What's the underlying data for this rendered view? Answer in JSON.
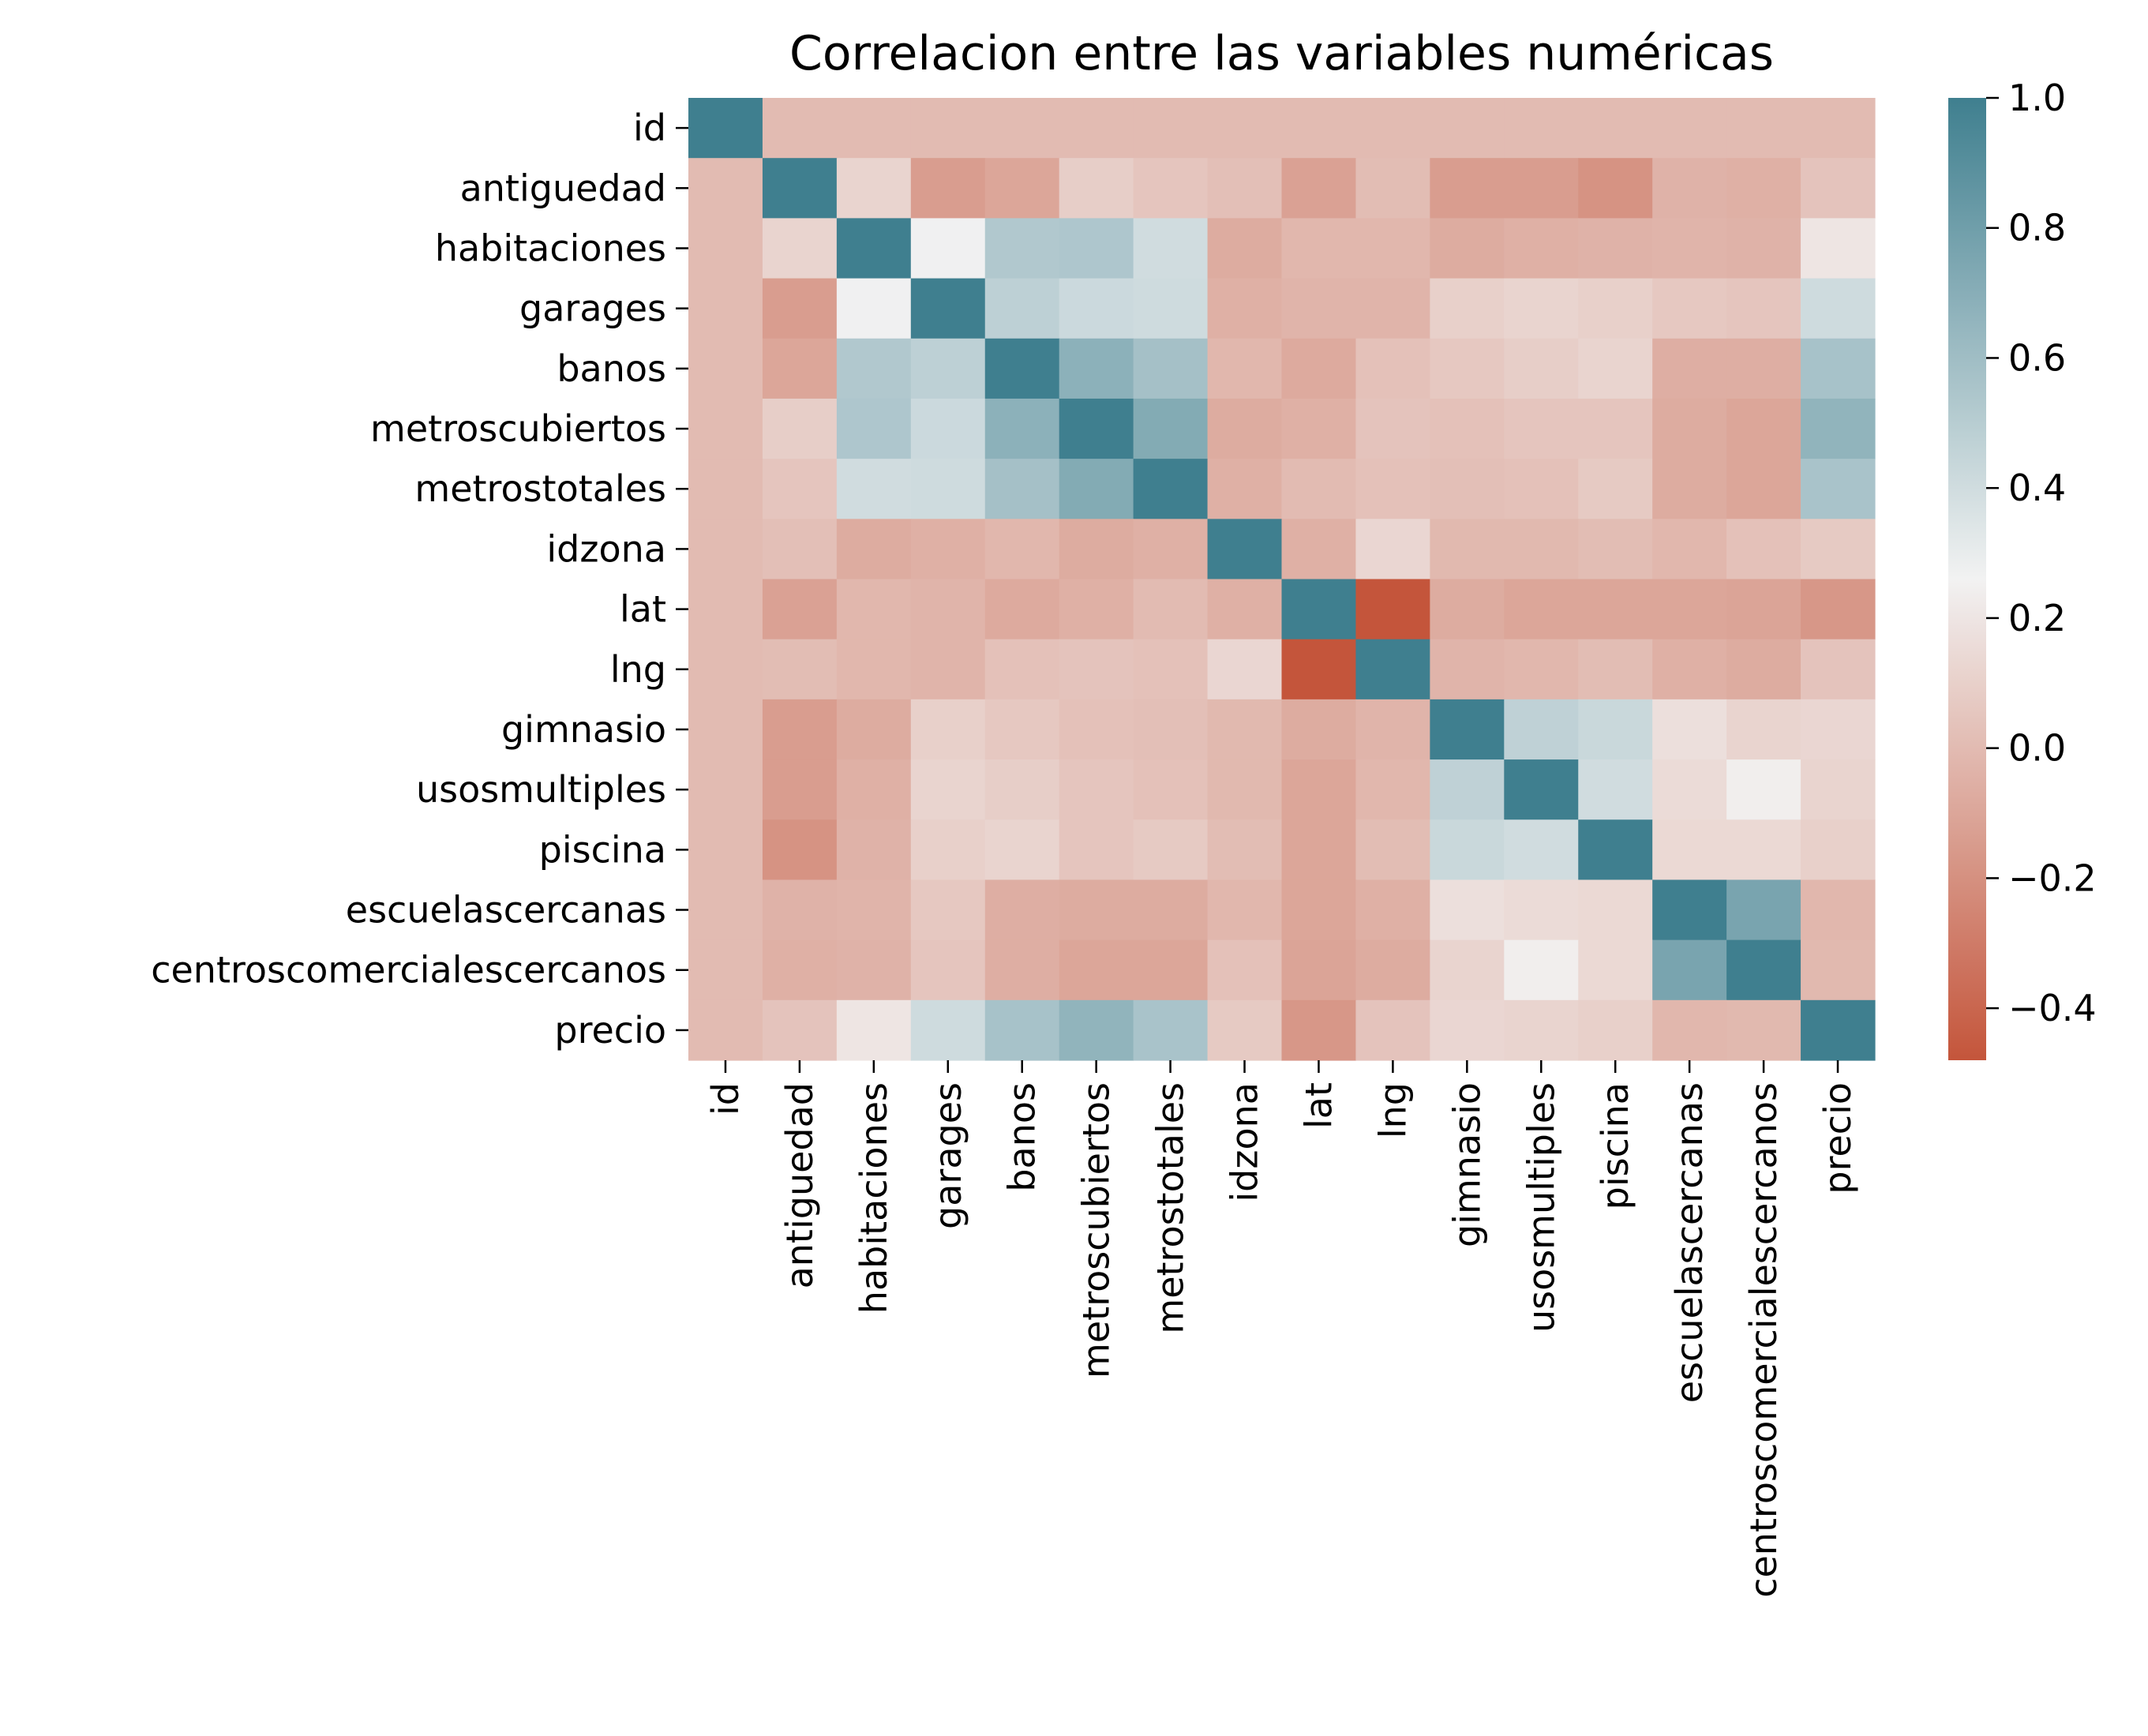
{
  "chart_data": {
    "type": "heatmap",
    "title": "Correlacion entre las variables numéricas",
    "variables": [
      "id",
      "antiguedad",
      "habitaciones",
      "garages",
      "banos",
      "metroscubiertos",
      "metrostotales",
      "idzona",
      "lat",
      "lng",
      "gimnasio",
      "usosmultiples",
      "piscina",
      "escuelascercanas",
      "centroscomercialescercanos",
      "precio"
    ],
    "matrix": [
      [
        1.0,
        0.0,
        0.0,
        0.0,
        0.0,
        0.0,
        0.0,
        0.0,
        0.0,
        0.0,
        0.0,
        0.0,
        0.0,
        0.0,
        0.0,
        0.0
      ],
      [
        0.0,
        1.0,
        0.12,
        -0.14,
        -0.1,
        0.09,
        0.05,
        0.02,
        -0.12,
        0.01,
        -0.14,
        -0.14,
        -0.19,
        -0.04,
        -0.05,
        0.04
      ],
      [
        0.0,
        0.12,
        1.0,
        0.27,
        0.53,
        0.54,
        0.4,
        -0.07,
        -0.02,
        -0.02,
        -0.07,
        -0.05,
        -0.04,
        -0.03,
        -0.04,
        0.2
      ],
      [
        0.0,
        -0.14,
        0.27,
        1.0,
        0.48,
        0.42,
        0.41,
        -0.05,
        -0.03,
        -0.03,
        0.1,
        0.12,
        0.1,
        0.06,
        0.05,
        0.41
      ],
      [
        0.0,
        -0.1,
        0.53,
        0.48,
        1.0,
        0.68,
        0.58,
        -0.02,
        -0.08,
        0.03,
        0.06,
        0.09,
        0.12,
        -0.06,
        -0.06,
        0.57
      ],
      [
        0.0,
        0.09,
        0.54,
        0.42,
        0.68,
        1.0,
        0.72,
        -0.07,
        -0.05,
        0.04,
        0.03,
        0.05,
        0.05,
        -0.07,
        -0.1,
        0.66
      ],
      [
        0.0,
        0.05,
        0.4,
        0.41,
        0.58,
        0.72,
        1.0,
        -0.05,
        0.0,
        0.03,
        0.02,
        0.03,
        0.07,
        -0.07,
        -0.1,
        0.56
      ],
      [
        0.0,
        0.02,
        -0.07,
        -0.05,
        -0.02,
        -0.07,
        -0.05,
        1.0,
        -0.05,
        0.13,
        -0.01,
        -0.01,
        0.01,
        -0.02,
        0.03,
        0.07
      ],
      [
        0.0,
        -0.12,
        -0.02,
        -0.03,
        -0.08,
        -0.05,
        0.0,
        -0.05,
        1.0,
        -0.48,
        -0.07,
        -0.1,
        -0.1,
        -0.1,
        -0.11,
        -0.17
      ],
      [
        0.0,
        0.01,
        -0.02,
        -0.03,
        0.03,
        0.04,
        0.03,
        0.13,
        -0.48,
        1.0,
        -0.03,
        -0.02,
        0.01,
        -0.05,
        -0.07,
        0.04
      ],
      [
        0.0,
        -0.14,
        -0.07,
        0.1,
        0.06,
        0.03,
        0.02,
        -0.01,
        -0.07,
        -0.03,
        1.0,
        0.47,
        0.43,
        0.17,
        0.12,
        0.13
      ],
      [
        0.0,
        -0.14,
        -0.05,
        0.12,
        0.09,
        0.05,
        0.03,
        -0.01,
        -0.1,
        -0.02,
        0.47,
        1.0,
        0.4,
        0.15,
        0.24,
        0.12
      ],
      [
        0.0,
        -0.19,
        -0.04,
        0.1,
        0.12,
        0.05,
        0.07,
        0.01,
        -0.1,
        0.01,
        0.43,
        0.4,
        1.0,
        0.14,
        0.14,
        0.1
      ],
      [
        0.0,
        -0.04,
        -0.03,
        0.06,
        -0.06,
        -0.07,
        -0.07,
        -0.02,
        -0.1,
        -0.05,
        0.17,
        0.15,
        0.14,
        1.0,
        0.76,
        -0.02
      ],
      [
        0.0,
        -0.05,
        -0.04,
        0.05,
        -0.06,
        -0.1,
        -0.1,
        0.03,
        -0.11,
        -0.07,
        0.12,
        0.24,
        0.14,
        0.76,
        1.0,
        -0.01
      ],
      [
        0.0,
        0.04,
        0.2,
        0.41,
        0.57,
        0.66,
        0.56,
        0.07,
        -0.17,
        0.04,
        0.13,
        0.12,
        0.1,
        -0.02,
        -0.01,
        1.0
      ]
    ],
    "colorbar": {
      "vmin": -0.48,
      "vmax": 1.0,
      "ticks": [
        1.0,
        0.8,
        0.6,
        0.4,
        0.2,
        0.0,
        -0.2,
        -0.4
      ],
      "tick_labels": [
        "1.0",
        "0.8",
        "0.6",
        "0.4",
        "0.2",
        "0.0",
        "−0.2",
        "−0.4"
      ]
    },
    "colors": {
      "negative": "#c4553b",
      "center": "#f2f2f2",
      "positive": "#3f7f8f"
    },
    "grid": false
  }
}
